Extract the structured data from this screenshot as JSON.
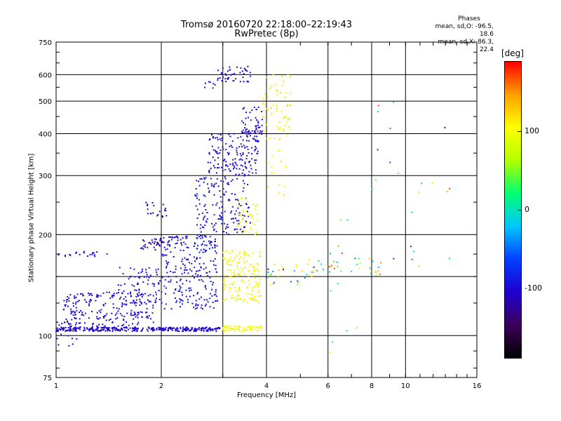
{
  "title": "Tromsø 20160720 22:18:00–22:19:43",
  "subtitle": "RwPretec (8p)",
  "phase_box": {
    "title": "Phases",
    "line_o": "mean, sd,O: -96.5, 18.6",
    "line_x": "mean, sd,X: 86.3, 22.4"
  },
  "colorbar": {
    "unit": "[deg]",
    "ticks": [
      {
        "value": 100,
        "label": "100"
      },
      {
        "value": 0,
        "label": "0"
      },
      {
        "value": -100,
        "label": "-100"
      }
    ],
    "range": [
      -190,
      190
    ],
    "colors": [
      "#000000",
      "#3c005a",
      "#2000d0",
      "#0040ff",
      "#00c8ff",
      "#00ff70",
      "#b4ff00",
      "#ffff00",
      "#ffa000",
      "#ff0000"
    ]
  },
  "chart_data": {
    "type": "scatter",
    "xlabel": "Frequency [MHz]",
    "ylabel": "Stationary phase Virtual Height [km]",
    "x_scale": "log",
    "y_scale": "log",
    "xlim": [
      1,
      16
    ],
    "ylim": [
      75,
      750
    ],
    "x_ticks": [
      {
        "value": 1,
        "label": "1"
      },
      {
        "value": 2,
        "label": "2"
      },
      {
        "value": 4,
        "label": "4"
      },
      {
        "value": 6,
        "label": "6"
      },
      {
        "value": 8,
        "label": "8"
      },
      {
        "value": 10,
        "label": "10"
      },
      {
        "value": 16,
        "label": "16"
      }
    ],
    "x_grid": [
      1,
      2,
      3,
      4,
      6,
      8,
      10
    ],
    "y_ticks": [
      {
        "value": 75,
        "label": "75"
      },
      {
        "value": 100,
        "label": "100"
      },
      {
        "value": 200,
        "label": "200"
      },
      {
        "value": 300,
        "label": "300"
      },
      {
        "value": 400,
        "label": "400"
      },
      {
        "value": 500,
        "label": "500"
      },
      {
        "value": 600,
        "label": "600"
      },
      {
        "value": 750,
        "label": "750"
      }
    ],
    "y_grid": [
      100,
      150,
      200,
      300,
      400,
      500,
      600
    ],
    "grid": true,
    "color_by": "phase [deg]",
    "clusters": [
      {
        "freq": [
          1.0,
          2.95
        ],
        "height": [
          103,
          106
        ],
        "phase": [
          -110,
          -95
        ],
        "count": 300
      },
      {
        "freq": [
          1.0,
          1.15
        ],
        "height": [
          93,
          120
        ],
        "phase": [
          -110,
          -90
        ],
        "count": 30
      },
      {
        "freq": [
          1.05,
          1.9
        ],
        "height": [
          105,
          135
        ],
        "phase": [
          -115,
          -90
        ],
        "count": 220
      },
      {
        "freq": [
          1.5,
          2.0
        ],
        "height": [
          125,
          160
        ],
        "phase": [
          -110,
          -85
        ],
        "count": 80
      },
      {
        "freq": [
          1.75,
          2.05
        ],
        "height": [
          180,
          195
        ],
        "phase": [
          -125,
          -110
        ],
        "count": 35
      },
      {
        "freq": [
          1.8,
          2.1
        ],
        "height": [
          225,
          250
        ],
        "phase": [
          -110,
          -90
        ],
        "count": 20
      },
      {
        "freq": [
          1.0,
          1.4
        ],
        "height": [
          172,
          178
        ],
        "phase": [
          -110,
          -95
        ],
        "count": 20
      },
      {
        "freq": [
          2.0,
          2.9
        ],
        "height": [
          120,
          200
        ],
        "phase": [
          -105,
          -80
        ],
        "count": 260
      },
      {
        "freq": [
          2.5,
          3.6
        ],
        "height": [
          200,
          300
        ],
        "phase": [
          -110,
          -80
        ],
        "count": 160
      },
      {
        "freq": [
          2.7,
          3.8
        ],
        "height": [
          300,
          400
        ],
        "phase": [
          -110,
          -85
        ],
        "count": 150
      },
      {
        "freq": [
          3.4,
          3.9
        ],
        "height": [
          400,
          480
        ],
        "phase": [
          -115,
          -90
        ],
        "count": 40
      },
      {
        "freq": [
          3.4,
          3.9
        ],
        "height": [
          380,
          420
        ],
        "phase": [
          -120,
          -100
        ],
        "count": 25
      },
      {
        "freq": [
          2.9,
          3.6
        ],
        "height": [
          570,
          640
        ],
        "phase": [
          -110,
          -90
        ],
        "count": 45
      },
      {
        "freq": [
          2.6,
          2.9
        ],
        "height": [
          545,
          580
        ],
        "phase": [
          -105,
          -95
        ],
        "count": 8
      },
      {
        "freq": [
          3.0,
          3.9
        ],
        "height": [
          103,
          107
        ],
        "phase": [
          95,
          115
        ],
        "count": 70
      },
      {
        "freq": [
          3.0,
          3.85
        ],
        "height": [
          125,
          180
        ],
        "phase": [
          95,
          125
        ],
        "count": 160
      },
      {
        "freq": [
          3.3,
          3.8
        ],
        "height": [
          200,
          260
        ],
        "phase": [
          90,
          115
        ],
        "count": 45
      },
      {
        "freq": [
          3.9,
          4.7
        ],
        "height": [
          380,
          620
        ],
        "phase": [
          100,
          130
        ],
        "count": 55
      },
      {
        "freq": [
          4.0,
          4.6
        ],
        "height": [
          260,
          370
        ],
        "phase": [
          95,
          120
        ],
        "count": 15
      },
      {
        "freq": [
          4.0,
          5.5
        ],
        "height": [
          140,
          165
        ],
        "phase": [
          -100,
          160
        ],
        "count": 30
      },
      {
        "freq": [
          5.3,
          8.5
        ],
        "height": [
          150,
          170
        ],
        "phase": [
          -60,
          180
        ],
        "count": 35
      },
      {
        "freq": [
          4.3,
          4.8
        ],
        "height": [
          405,
          420
        ],
        "phase": [
          85,
          120
        ],
        "count": 8
      },
      {
        "freq": [
          8.0,
          13.5
        ],
        "height": [
          160,
          520
        ],
        "phase": [
          -110,
          180
        ],
        "count": 22
      },
      {
        "freq": [
          6.0,
          7.5
        ],
        "height": [
          80,
          230
        ],
        "phase": [
          -40,
          180
        ],
        "count": 12
      }
    ]
  }
}
